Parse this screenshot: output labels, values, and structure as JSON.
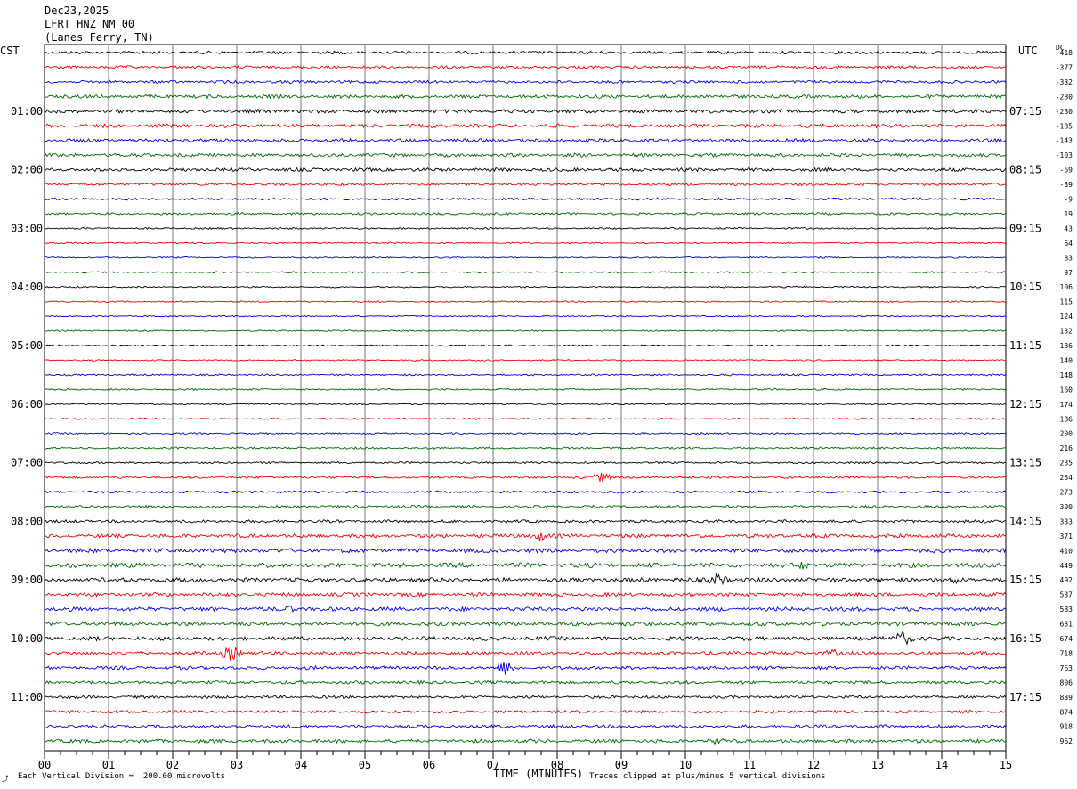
{
  "header": {
    "date": "Dec23,2025",
    "station": "LFRT HNZ NM 00",
    "location": "(Lanes Ferry, TN)"
  },
  "labels": {
    "left_zone": "CST",
    "right_zone": "UTC",
    "dc_label": "DC"
  },
  "footer": {
    "scale_note": "Each Vertical Division =  200.00 microvolts",
    "clip_note": "Traces clipped at plus/minus 5 vertical divisions",
    "mark": "⤴"
  },
  "colors": {
    "trace_cycle": [
      "#000000",
      "#ee0000",
      "#0000dd",
      "#006600"
    ],
    "grid": "#777777"
  },
  "chart_data": {
    "type": "line",
    "description_kind": "helicorder",
    "xlabel": "TIME (MINUTES)",
    "x_ticks": [
      "00",
      "01",
      "02",
      "03",
      "04",
      "05",
      "06",
      "07",
      "08",
      "09",
      "10",
      "11",
      "12",
      "13",
      "14",
      "15"
    ],
    "xlim": [
      0,
      15
    ],
    "minutes_per_line": 15,
    "line_count": 48,
    "left_hour_labels": [
      "01:00",
      "02:00",
      "03:00",
      "04:00",
      "05:00",
      "06:00",
      "07:00",
      "08:00",
      "09:00",
      "10:00",
      "11:00"
    ],
    "right_hour_labels": [
      "07:15",
      "08:15",
      "09:15",
      "10:15",
      "11:15",
      "12:15",
      "13:15",
      "14:15",
      "15:15",
      "16:15",
      "17:15"
    ],
    "dc_offsets": [
      "-418",
      "-377",
      "-332",
      "-280",
      "-230",
      "-185",
      "-143",
      "-103",
      "-69",
      "-39",
      "-9",
      "19",
      "43",
      "64",
      "83",
      "97",
      "106",
      "115",
      "124",
      "132",
      "136",
      "140",
      "148",
      "160",
      "174",
      "186",
      "200",
      "216",
      "235",
      "254",
      "273",
      "300",
      "333",
      "371",
      "410",
      "449",
      "492",
      "537",
      "583",
      "631",
      "674",
      "718",
      "763",
      "806",
      "839",
      "874",
      "918",
      "962"
    ],
    "noise_level": [
      1.0,
      1.0,
      1.0,
      1.2,
      1.3,
      1.3,
      1.2,
      1.2,
      1.2,
      0.9,
      0.8,
      0.8,
      0.6,
      0.5,
      0.5,
      0.5,
      0.5,
      0.5,
      0.5,
      0.5,
      0.5,
      0.5,
      0.6,
      0.6,
      0.5,
      0.5,
      0.6,
      0.7,
      0.7,
      0.8,
      0.8,
      0.9,
      1.0,
      1.3,
      1.5,
      1.6,
      1.5,
      1.3,
      1.4,
      1.4,
      1.4,
      1.2,
      1.2,
      1.1,
      1.0,
      1.0,
      1.1,
      1.2
    ],
    "events": [
      {
        "line": 29,
        "minute": 8.7,
        "amplitude": 6
      },
      {
        "line": 33,
        "minute": 7.7,
        "amplitude": 7
      },
      {
        "line": 35,
        "minute": 11.8,
        "amplitude": 6
      },
      {
        "line": 36,
        "minute": 10.5,
        "amplitude": 8
      },
      {
        "line": 36,
        "minute": 14.2,
        "amplitude": 5
      },
      {
        "line": 38,
        "minute": 3.8,
        "amplitude": 5
      },
      {
        "line": 40,
        "minute": 13.4,
        "amplitude": 9
      },
      {
        "line": 41,
        "minute": 2.9,
        "amplitude": 9
      },
      {
        "line": 41,
        "minute": 12.3,
        "amplitude": 5
      },
      {
        "line": 42,
        "minute": 7.2,
        "amplitude": 9
      },
      {
        "line": 47,
        "minute": 10.5,
        "amplitude": 5
      }
    ]
  }
}
